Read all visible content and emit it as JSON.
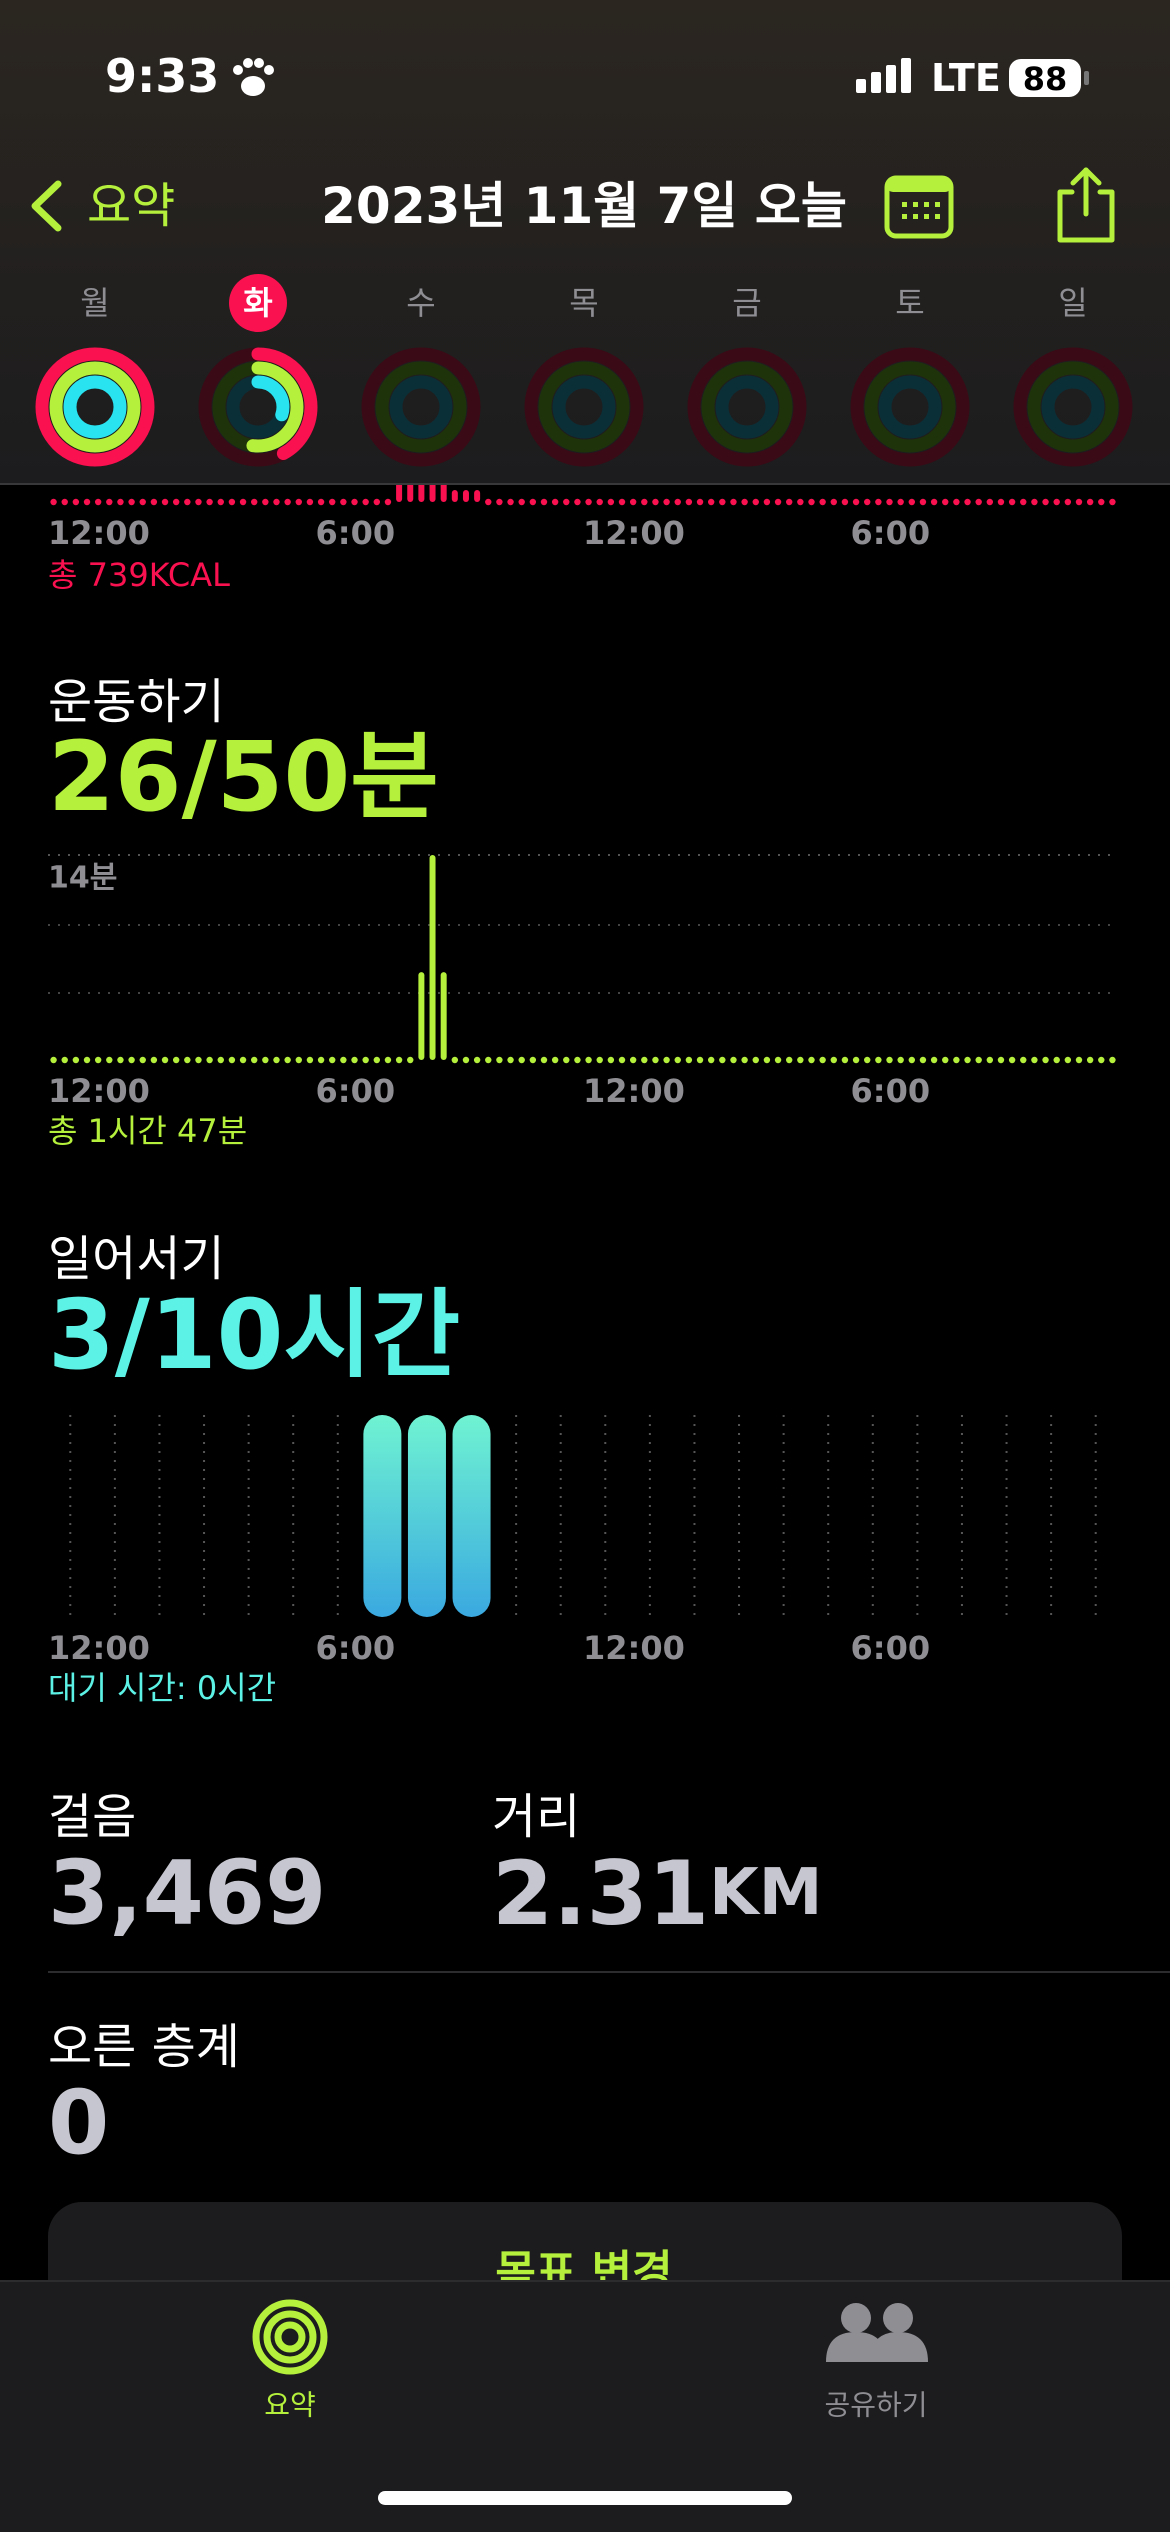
{
  "status_bar": {
    "time": "9:33",
    "network": "LTE",
    "battery": "88"
  },
  "nav": {
    "back": "요약",
    "title": "2023년 11월 7일 오늘"
  },
  "week": {
    "days": [
      "월",
      "화",
      "수",
      "목",
      "금",
      "토",
      "일"
    ],
    "selected": 1,
    "rings": [
      [
        1,
        1,
        1
      ],
      [
        0.42,
        0.52,
        0.3
      ],
      [
        0,
        0,
        0
      ],
      [
        0,
        0,
        0
      ],
      [
        0,
        0,
        0
      ],
      [
        0,
        0,
        0
      ],
      [
        0,
        0,
        0
      ]
    ]
  },
  "move": {
    "total": "총 739KCAL",
    "xlim": [
      0,
      24
    ],
    "xticks": [
      {
        "value": 0,
        "label": "12:00"
      },
      {
        "value": 6,
        "label": "6:00"
      },
      {
        "value": 12,
        "label": "12:00"
      },
      {
        "value": 18,
        "label": "6:00"
      }
    ],
    "ylim": [
      0,
      10
    ],
    "values": [
      0,
      0,
      0,
      0,
      0,
      0,
      0,
      0,
      0,
      0,
      0,
      0,
      0,
      0,
      0,
      0,
      0,
      0,
      0,
      0,
      0,
      0,
      0,
      0,
      0,
      0,
      0,
      0,
      0,
      0,
      0,
      10,
      10,
      10,
      10,
      10,
      1,
      1,
      1,
      0,
      0,
      0,
      0,
      0,
      0,
      0,
      0,
      0,
      0,
      0,
      0,
      0,
      0,
      0,
      0,
      0,
      0,
      0,
      0,
      0,
      0,
      0,
      0,
      0,
      0,
      0,
      0,
      0,
      0,
      0,
      0,
      0,
      0,
      0,
      0,
      0,
      0,
      0,
      0,
      0,
      0,
      0,
      0,
      0,
      0,
      0,
      0,
      0,
      0,
      0,
      0,
      0,
      0,
      0,
      0,
      0
    ]
  },
  "exercise": {
    "title": "운동하기",
    "summary": "26/50분",
    "total": "총 1시간 47분",
    "xlim": [
      0,
      24
    ],
    "xticks": [
      {
        "value": 0,
        "label": "12:00"
      },
      {
        "value": 6,
        "label": "6:00"
      },
      {
        "value": 12,
        "label": "12:00"
      },
      {
        "value": 18,
        "label": "6:00"
      }
    ],
    "ylim": [
      0,
      14
    ],
    "yticks": [
      {
        "value": 14,
        "label": "14분"
      }
    ],
    "values": [
      0,
      0,
      0,
      0,
      0,
      0,
      0,
      0,
      0,
      0,
      0,
      0,
      0,
      0,
      0,
      0,
      0,
      0,
      0,
      0,
      0,
      0,
      0,
      0,
      0,
      0,
      0,
      0,
      0,
      0,
      0,
      0,
      0,
      6,
      14,
      6,
      0,
      0,
      0,
      0,
      0,
      0,
      0,
      0,
      0,
      0,
      0,
      0,
      0,
      0,
      0,
      0,
      0,
      0,
      0,
      0,
      0,
      0,
      0,
      0,
      0,
      0,
      0,
      0,
      0,
      0,
      0,
      0,
      0,
      0,
      0,
      0,
      0,
      0,
      0,
      0,
      0,
      0,
      0,
      0,
      0,
      0,
      0,
      0,
      0,
      0,
      0,
      0,
      0,
      0,
      0,
      0,
      0,
      0,
      0,
      0
    ]
  },
  "stand": {
    "title": "일어서기",
    "summary": "3/10시간",
    "total": "대기 시간: 0시간",
    "xlim": [
      0,
      24
    ],
    "xticks": [
      {
        "value": 0,
        "label": "12:00"
      },
      {
        "value": 6,
        "label": "6:00"
      },
      {
        "value": 12,
        "label": "12:00"
      },
      {
        "value": 18,
        "label": "6:00"
      }
    ],
    "ylim": [
      0,
      1
    ],
    "values": [
      0,
      0,
      0,
      0,
      0,
      0,
      0,
      1,
      1,
      1,
      0,
      0,
      0,
      0,
      0,
      0,
      0,
      0,
      0,
      0,
      0,
      0,
      0,
      0
    ]
  },
  "stats": {
    "steps": {
      "label": "걸음",
      "value": "3,469"
    },
    "distance": {
      "label": "거리",
      "value": "2.31",
      "unit": "KM"
    },
    "flights": {
      "label": "오른 층계",
      "value": "0"
    }
  },
  "button": "목표 변경",
  "tab_bar": {
    "tabs": [
      "요약",
      "공유하기"
    ],
    "selected": 0
  }
}
